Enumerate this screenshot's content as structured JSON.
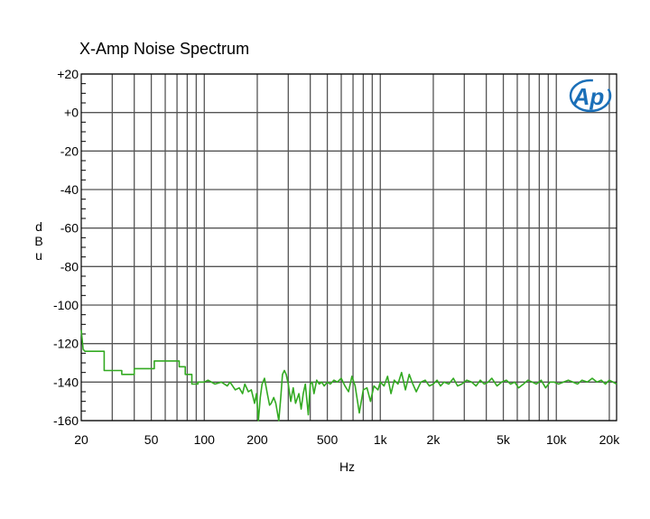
{
  "chart_data": {
    "type": "line",
    "title": "X-Amp Noise Spectrum",
    "xlabel": "Hz",
    "ylabel": "dBu",
    "x_scale": "log",
    "xlim": [
      20,
      22000
    ],
    "ylim": [
      -160,
      20
    ],
    "grid": true,
    "x_tick_values": [
      20,
      50,
      100,
      200,
      500,
      1000,
      2000,
      5000,
      10000,
      20000
    ],
    "x_tick_labels": [
      "20",
      "50",
      "100",
      "200",
      "500",
      "1k",
      "2k",
      "5k",
      "10k",
      "20k"
    ],
    "y_tick_values": [
      20,
      0,
      -20,
      -40,
      -60,
      -80,
      -100,
      -120,
      -140,
      -160
    ],
    "y_tick_labels": [
      "+20",
      "+0",
      "-20",
      "-40",
      "-60",
      "-80",
      "-100",
      "-120",
      "-140",
      "-160"
    ],
    "series_color": "#33aa22",
    "series": [
      {
        "x": [
          20,
          20.5,
          21,
          27,
          27,
          34,
          34,
          40,
          40,
          52,
          52,
          72,
          72,
          78,
          78,
          85,
          85,
          92,
          92,
          100,
          105,
          115,
          125,
          135,
          140,
          150,
          158,
          165,
          170,
          178,
          185,
          193,
          198,
          203,
          208,
          213,
          220,
          228,
          235,
          240,
          248,
          255,
          265,
          272,
          278,
          285,
          292,
          300,
          310,
          320,
          330,
          345,
          355,
          365,
          375,
          390,
          400,
          410,
          420,
          435,
          450,
          465,
          480,
          500,
          520,
          545,
          570,
          600,
          630,
          660,
          690,
          720,
          760,
          800,
          840,
          880,
          920,
          970,
          1000,
          1050,
          1100,
          1150,
          1200,
          1260,
          1320,
          1390,
          1460,
          1530,
          1600,
          1700,
          1800,
          1900,
          2000,
          2100,
          2200,
          2300,
          2450,
          2600,
          2750,
          2900,
          3100,
          3300,
          3500,
          3700,
          3900,
          4100,
          4300,
          4600,
          4900,
          5200,
          5500,
          5800,
          6100,
          6500,
          6900,
          7300,
          7700,
          8200,
          8700,
          9200,
          9700,
          10300,
          11000,
          11700,
          12400,
          13200,
          14000,
          15000,
          16000,
          17000,
          18000,
          19000,
          20000,
          21000,
          22000
        ],
        "y": [
          -113,
          -123,
          -124,
          -124,
          -134,
          -134,
          -136,
          -136,
          -133,
          -133,
          -129,
          -129,
          -132,
          -132,
          -136,
          -136,
          -141,
          -141,
          -140,
          -140,
          -139,
          -141,
          -140,
          -142,
          -140,
          -144,
          -143,
          -146,
          -141,
          -145,
          -144,
          -151,
          -146,
          -160,
          -148,
          -141,
          -138,
          -146,
          -152,
          -151,
          -148,
          -151,
          -160,
          -148,
          -136,
          -134,
          -136,
          -141,
          -150,
          -143,
          -151,
          -146,
          -154,
          -146,
          -141,
          -157,
          -141,
          -140,
          -146,
          -139,
          -141,
          -140,
          -142,
          -140,
          -141,
          -139,
          -140,
          -138,
          -142,
          -145,
          -137,
          -142,
          -156,
          -144,
          -143,
          -150,
          -142,
          -144,
          -140,
          -142,
          -137,
          -146,
          -139,
          -141,
          -135,
          -144,
          -136,
          -141,
          -145,
          -140,
          -139,
          -142,
          -141,
          -139,
          -142,
          -140,
          -141,
          -138,
          -142,
          -141,
          -139,
          -140,
          -142,
          -139,
          -141,
          -140,
          -138,
          -142,
          -140,
          -139,
          -141,
          -140,
          -143,
          -141,
          -139,
          -140,
          -141,
          -139,
          -143,
          -140,
          -140,
          -141,
          -140,
          -139,
          -140,
          -141,
          -139,
          -140,
          -138,
          -140,
          -139,
          -141,
          -139,
          -140,
          -141
        ]
      }
    ]
  },
  "logo": {
    "text": "Ap",
    "color": "#1a6fb8"
  }
}
